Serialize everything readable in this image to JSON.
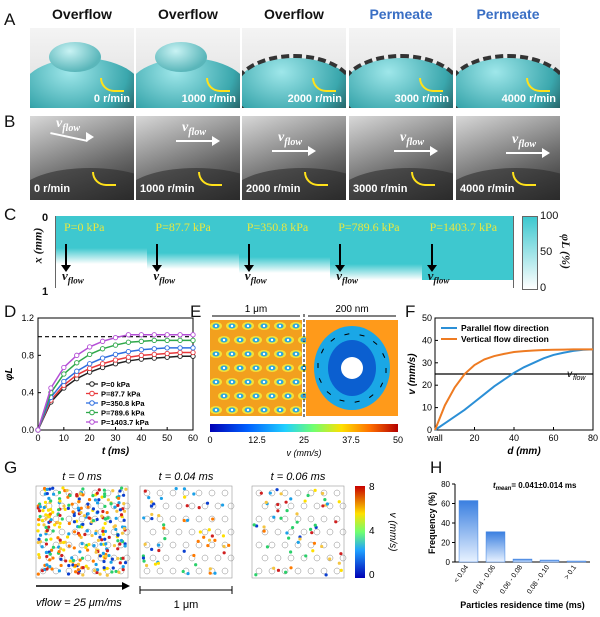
{
  "panel_letters": {
    "a": "A",
    "b": "B",
    "c": "C",
    "d": "D",
    "e": "E",
    "f": "F",
    "g": "G",
    "h": "H"
  },
  "row_a": {
    "headers": [
      "Overflow",
      "Overflow",
      "Overflow",
      "Permeate",
      "Permeate"
    ],
    "speeds": [
      "0 r/min",
      "1000 r/min",
      "2000 r/min",
      "3000 r/min",
      "4000 r/min"
    ]
  },
  "row_b": {
    "vflow": "v",
    "vflow_sub": "flow",
    "speeds": [
      "0 r/min",
      "1000 r/min",
      "2000 r/min",
      "3000 r/min",
      "4000 r/min"
    ]
  },
  "row_c": {
    "pressures": [
      "P=0 kPa",
      "P=87.7 kPa",
      "P=350.8 kPa",
      "P=789.6 kPa",
      "P=1403.7 kPa"
    ],
    "fill_fraction": [
      0.55,
      0.62,
      0.68,
      0.78,
      1.0
    ],
    "y_axis_label": "x (mm)",
    "y_ticks": [
      "0",
      "1"
    ],
    "colorbar_label": "φL (%)",
    "colorbar_ticks": [
      "100",
      "50",
      "0"
    ],
    "vflow": "v",
    "vflow_sub": "flow"
  },
  "chart_data": [
    {
      "type": "line",
      "panel": "D",
      "xlabel": "t (ms)",
      "ylabel": "φL",
      "xlim": [
        0,
        60
      ],
      "ylim": [
        0,
        1.2
      ],
      "x_ticks": [
        0,
        10,
        20,
        30,
        40,
        50,
        60
      ],
      "y_ticks": [
        0.0,
        0.4,
        0.8,
        1.2
      ],
      "reference_line": 1.0,
      "series": [
        {
          "name": "P=0 kPa",
          "color": "#222222",
          "x": [
            0,
            5,
            10,
            15,
            20,
            25,
            30,
            35,
            40,
            45,
            50,
            55,
            60
          ],
          "values": [
            0,
            0.3,
            0.45,
            0.55,
            0.62,
            0.67,
            0.71,
            0.74,
            0.76,
            0.77,
            0.78,
            0.79,
            0.79
          ]
        },
        {
          "name": "P=87.7 kPa",
          "color": "#e8383b",
          "x": [
            0,
            5,
            10,
            15,
            20,
            25,
            30,
            35,
            40,
            45,
            50,
            55,
            60
          ],
          "values": [
            0,
            0.32,
            0.48,
            0.59,
            0.66,
            0.71,
            0.75,
            0.78,
            0.8,
            0.81,
            0.82,
            0.83,
            0.83
          ]
        },
        {
          "name": "P=350.8 kPa",
          "color": "#2f6fe0",
          "x": [
            0,
            5,
            10,
            15,
            20,
            25,
            30,
            35,
            40,
            45,
            50,
            55,
            60
          ],
          "values": [
            0,
            0.35,
            0.52,
            0.63,
            0.71,
            0.77,
            0.81,
            0.84,
            0.86,
            0.87,
            0.88,
            0.88,
            0.88
          ]
        },
        {
          "name": "P=789.6 kPa",
          "color": "#2ea84a",
          "x": [
            0,
            5,
            10,
            15,
            20,
            25,
            30,
            35,
            40,
            45,
            50,
            55,
            60
          ],
          "values": [
            0,
            0.4,
            0.6,
            0.72,
            0.81,
            0.87,
            0.91,
            0.94,
            0.95,
            0.96,
            0.96,
            0.96,
            0.96
          ]
        },
        {
          "name": "P=1403.7 kPa",
          "color": "#b44fd6",
          "x": [
            0,
            5,
            10,
            15,
            20,
            25,
            30,
            35,
            40,
            45,
            50,
            55,
            60
          ],
          "values": [
            0,
            0.45,
            0.67,
            0.8,
            0.89,
            0.95,
            0.99,
            1.02,
            1.02,
            1.02,
            1.02,
            1.02,
            1.02
          ]
        }
      ]
    },
    {
      "type": "line",
      "panel": "F",
      "xlabel": "d (mm)",
      "ylabel": "v (mm/s)",
      "xlim": [
        0,
        80
      ],
      "ylim": [
        0,
        50
      ],
      "x_ticks": [
        "wall",
        "20",
        "40",
        "60",
        "80"
      ],
      "y_ticks": [
        0,
        10,
        20,
        30,
        40,
        50
      ],
      "reference_line": 25,
      "reference_label": "v",
      "reference_sub": "flow",
      "series": [
        {
          "name": "Parallel flow direction",
          "color": "#2b8fd6",
          "x": [
            0,
            5,
            10,
            15,
            20,
            25,
            30,
            35,
            40,
            45,
            50,
            55,
            60,
            65,
            70,
            75,
            80
          ],
          "values": [
            0,
            3,
            6,
            9,
            12.5,
            16,
            19.5,
            22.5,
            25.5,
            28,
            30,
            32,
            33.5,
            34.5,
            35.3,
            35.8,
            36
          ]
        },
        {
          "name": "Vertical flow direction",
          "color": "#ee7b22",
          "x": [
            0,
            5,
            10,
            15,
            20,
            25,
            30,
            35,
            40,
            45,
            50,
            55,
            60,
            65,
            70,
            75,
            80
          ],
          "values": [
            0,
            11,
            19,
            25,
            29,
            31.5,
            33,
            34,
            34.8,
            35.2,
            35.5,
            35.7,
            35.8,
            35.9,
            36,
            36,
            36
          ]
        }
      ]
    },
    {
      "type": "bar",
      "panel": "H",
      "title": "t_mean = 0.041±0.014 ms",
      "xlabel": "Particles residence time (ms)",
      "ylabel": "Frequency (%)",
      "categories": [
        "< 0.04",
        "0.04 - 0.06",
        "0.06 - 0.08",
        "0.08 - 0.10",
        "> 0.1"
      ],
      "values": [
        63,
        31,
        3,
        2,
        1
      ],
      "ylim": [
        0,
        80
      ],
      "y_ticks": [
        0,
        20,
        40,
        60,
        80
      ]
    }
  ],
  "row_e": {
    "scale_left": "1 μm",
    "scale_right": "200 nm",
    "colorbar_ticks": [
      "0",
      "12.5",
      "25",
      "37.5",
      "50"
    ],
    "colorbar_label": "v (mm/s)"
  },
  "row_g": {
    "times": [
      "t = 0 ms",
      "t = 0.04 ms",
      "t = 0.06 ms"
    ],
    "colorbar_ticks": [
      "8",
      "4",
      "0"
    ],
    "colorbar_label": "v (mm/s)",
    "vflow_label": "vflow = 25 μm/ms",
    "scale": "1 μm"
  },
  "h_title": "t",
  "h_title_sub": "mean",
  "h_title_rest": "= 0.041±0.014 ms",
  "colors": {
    "cyan": "#3ec8cf",
    "yellow_arrow": "#ffe11a",
    "text_blue": "#3a6fc4"
  }
}
